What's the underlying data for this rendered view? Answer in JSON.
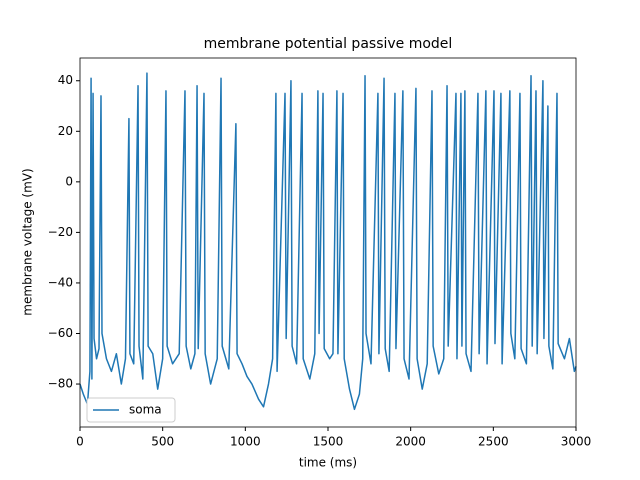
{
  "chart_data": {
    "type": "line",
    "title": "membrane potential passive model",
    "xlabel": "time (ms)",
    "ylabel": "membrane voltage (mV)",
    "xlim": [
      0,
      3000
    ],
    "ylim": [
      -97,
      49
    ],
    "xticks": [
      0,
      500,
      1000,
      1500,
      2000,
      2500,
      3000
    ],
    "yticks": [
      {
        "value": -80,
        "label": "−80"
      },
      {
        "value": -60,
        "label": "−60"
      },
      {
        "value": -40,
        "label": "−40"
      },
      {
        "value": -20,
        "label": "−20"
      },
      0,
      20,
      40
    ],
    "legend": "lower left",
    "series": [
      {
        "name": "soma",
        "color": "#1f77b4",
        "x": [
          0,
          20,
          45,
          60,
          67,
          72,
          79,
          85,
          100,
          115,
          127,
          133,
          160,
          190,
          220,
          250,
          275,
          296,
          302,
          325,
          351,
          357,
          380,
          405,
          412,
          440,
          470,
          500,
          520,
          527,
          560,
          600,
          635,
          642,
          670,
          695,
          708,
          715,
          750,
          757,
          790,
          830,
          853,
          860,
          900,
          943,
          950,
          980,
          1010,
          1040,
          1080,
          1110,
          1140,
          1165,
          1185,
          1192,
          1240,
          1247,
          1276,
          1283,
          1310,
          1343,
          1350,
          1390,
          1420,
          1439,
          1446,
          1470,
          1477,
          1510,
          1530,
          1554,
          1560,
          1591,
          1598,
          1630,
          1660,
          1690,
          1710,
          1724,
          1730,
          1760,
          1802,
          1808,
          1839,
          1846,
          1870,
          1905,
          1911,
          1953,
          1960,
          1990,
          2032,
          2039,
          2070,
          2100,
          2129,
          2136,
          2170,
          2200,
          2220,
          2227,
          2274,
          2280,
          2304,
          2310,
          2328,
          2335,
          2365,
          2407,
          2414,
          2455,
          2462,
          2504,
          2510,
          2546,
          2553,
          2600,
          2606,
          2630,
          2661,
          2668,
          2700,
          2728,
          2735,
          2758,
          2765,
          2800,
          2806,
          2830,
          2836,
          2860,
          2885,
          2892,
          2930,
          2960,
          2990,
          3000
        ],
        "values": [
          -80,
          -84,
          -88,
          -75,
          41,
          -78,
          35,
          -62,
          -70,
          -66,
          34,
          -60,
          -70,
          -75,
          -68,
          -80,
          -70,
          25,
          -68,
          -72,
          38,
          -65,
          -78,
          43,
          -65,
          -68,
          -82,
          -70,
          36,
          -65,
          -72,
          -68,
          36,
          -65,
          -74,
          -68,
          38,
          -66,
          35,
          -68,
          -80,
          -70,
          41,
          -65,
          -74,
          23,
          -68,
          -72,
          -77,
          -80,
          -86,
          -89,
          -80,
          -70,
          35,
          -75,
          35,
          -62,
          40,
          -65,
          -72,
          35,
          -70,
          -78,
          -68,
          36,
          -60,
          35,
          -66,
          -70,
          -68,
          36,
          -68,
          35,
          -70,
          -82,
          -90,
          -84,
          -70,
          42,
          -60,
          -72,
          35,
          -68,
          41,
          -66,
          -75,
          35,
          -66,
          36,
          -70,
          -78,
          37,
          -70,
          -82,
          -72,
          36,
          -65,
          -76,
          -70,
          38,
          -65,
          35,
          -70,
          35,
          -65,
          36,
          -68,
          -75,
          35,
          -68,
          36,
          -72,
          36,
          -64,
          35,
          -72,
          36,
          -60,
          -70,
          35,
          -66,
          -72,
          42,
          -65,
          36,
          -68,
          40,
          -62,
          30,
          -65,
          -74,
          35,
          -64,
          -70,
          -62,
          -75,
          -73
        ]
      }
    ]
  }
}
